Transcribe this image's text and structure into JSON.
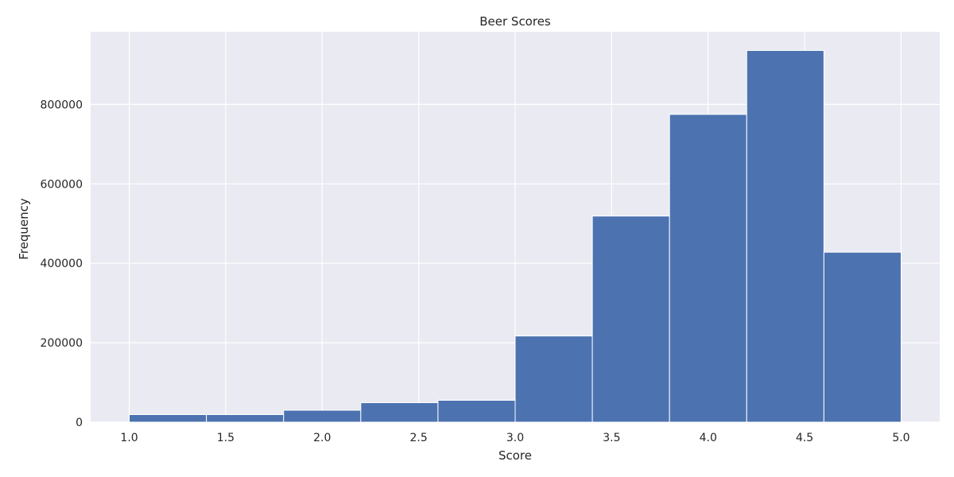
{
  "chart_data": {
    "type": "bar",
    "title": "Beer Scores",
    "xlabel": "Score",
    "ylabel": "Frequency",
    "bin_edges": [
      1.0,
      1.4,
      1.8,
      2.2,
      2.6,
      3.0,
      3.4,
      3.8,
      4.2,
      4.6,
      5.0
    ],
    "values": [
      19000,
      19000,
      30000,
      49000,
      55000,
      217000,
      519000,
      775000,
      936000,
      428000
    ],
    "xlim": [
      0.8,
      5.2
    ],
    "ylim": [
      0,
      983000
    ],
    "x_ticks": [
      1.0,
      1.5,
      2.0,
      2.5,
      3.0,
      3.5,
      4.0,
      4.5,
      5.0
    ],
    "x_tick_labels": [
      "1.0",
      "1.5",
      "2.0",
      "2.5",
      "3.0",
      "3.5",
      "4.0",
      "4.5",
      "5.0"
    ],
    "y_ticks": [
      0,
      200000,
      400000,
      600000,
      800000
    ],
    "y_tick_labels": [
      "0",
      "200000",
      "400000",
      "600000",
      "800000"
    ],
    "grid": true,
    "bar_color": "#4c72b0",
    "background_color": "#eaeaf2"
  }
}
